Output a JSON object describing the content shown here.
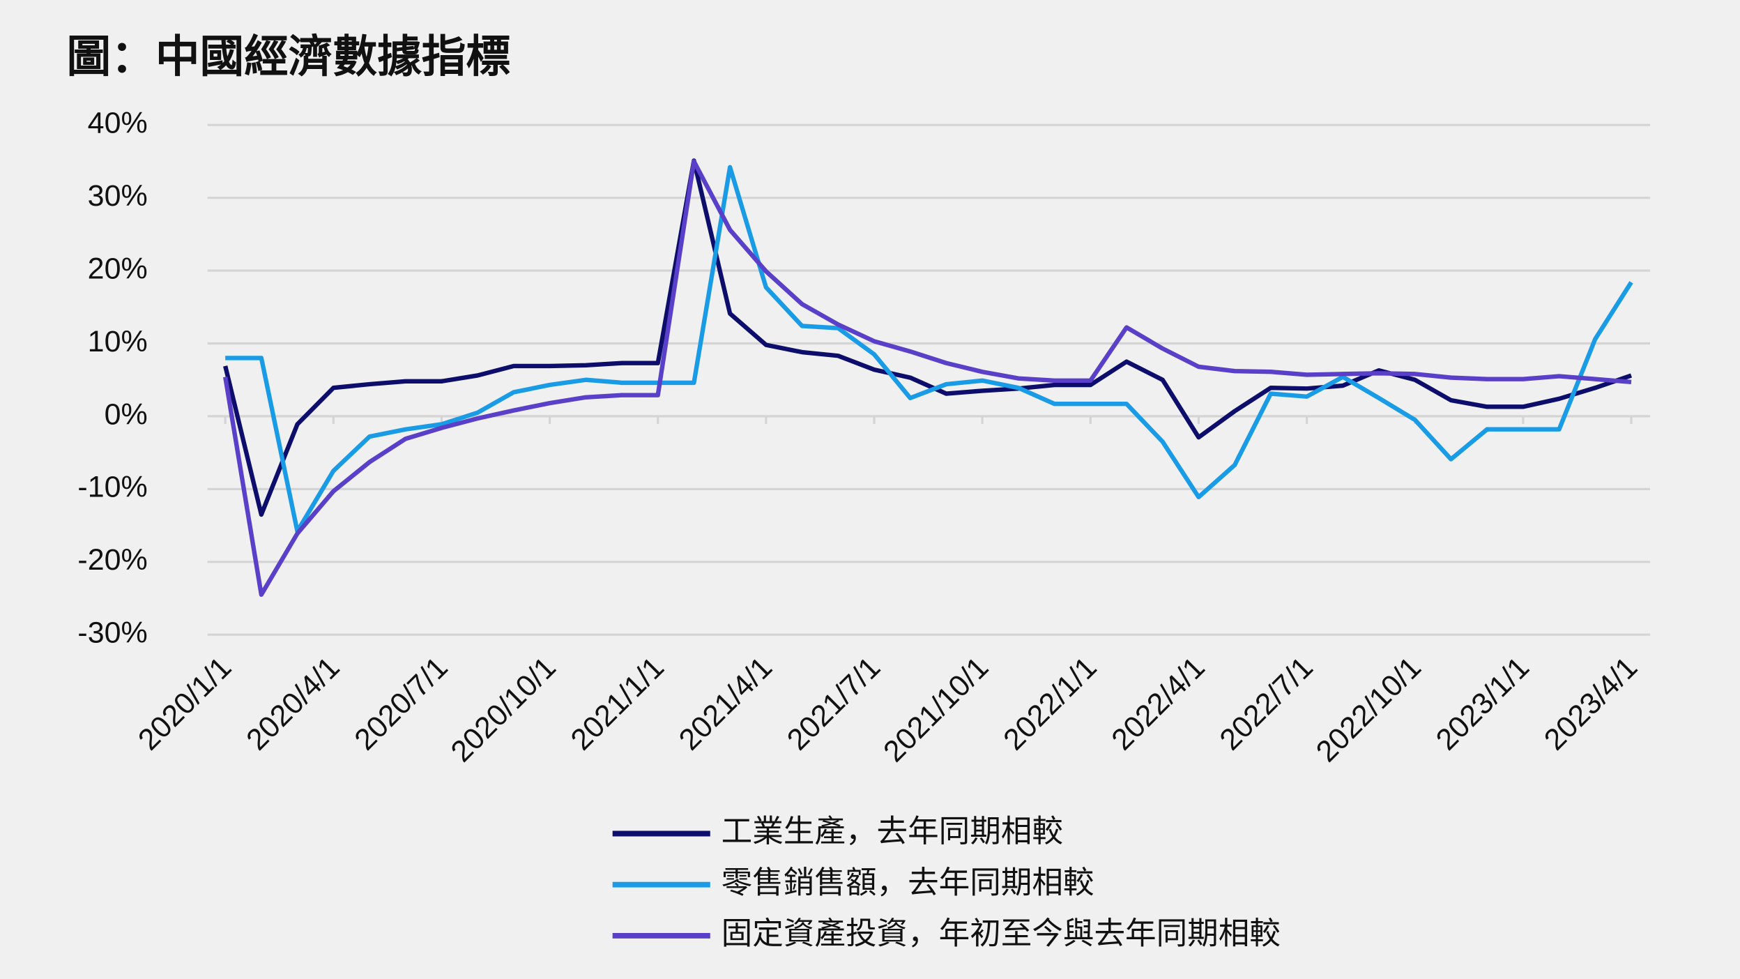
{
  "chart_data": {
    "type": "line",
    "title": "圖：中國經濟數據指標",
    "categories": [
      "2020/1/1",
      null,
      null,
      "2020/4/1",
      null,
      null,
      "2020/7/1",
      null,
      null,
      "2020/10/1",
      null,
      null,
      "2021/1/1",
      null,
      null,
      "2021/4/1",
      null,
      null,
      "2021/7/1",
      null,
      null,
      "2021/10/1",
      null,
      null,
      "2022/1/1",
      null,
      null,
      "2022/4/1",
      null,
      null,
      "2022/7/1",
      null,
      null,
      "2022/10/1",
      null,
      null,
      "2023/1/1",
      null,
      null,
      "2023/4/1"
    ],
    "series": [
      {
        "name": "工業生產，去年同期相較",
        "color": "#0d0d6b",
        "values": [
          6.9,
          -13.5,
          -1.1,
          3.9,
          4.4,
          4.8,
          4.8,
          5.6,
          6.9,
          6.9,
          7.0,
          7.3,
          7.3,
          35.1,
          14.1,
          9.8,
          8.8,
          8.3,
          6.4,
          5.3,
          3.1,
          3.5,
          3.8,
          4.3,
          4.3,
          7.5,
          5.0,
          -2.9,
          0.7,
          3.9,
          3.8,
          4.2,
          6.3,
          5.0,
          2.2,
          1.3,
          1.3,
          2.4,
          3.9,
          5.6
        ]
      },
      {
        "name": "零售銷售額，去年同期相較",
        "color": "#1a9be6",
        "values": [
          8.0,
          8.0,
          -15.8,
          -7.5,
          -2.8,
          -1.8,
          -1.1,
          0.5,
          3.3,
          4.3,
          5.0,
          4.6,
          4.6,
          4.6,
          34.2,
          17.7,
          12.4,
          12.1,
          8.5,
          2.5,
          4.4,
          4.9,
          3.9,
          1.7,
          1.7,
          1.7,
          -3.5,
          -11.1,
          -6.7,
          3.1,
          2.7,
          5.4,
          2.5,
          -0.5,
          -5.9,
          -1.8,
          -1.8,
          -1.8,
          10.6,
          18.4
        ]
      },
      {
        "name": "固定資產投資，年初至今與去年同期相較",
        "color": "#5a3fc8",
        "values": [
          5.4,
          -24.5,
          -16.1,
          -10.3,
          -6.3,
          -3.1,
          -1.6,
          -0.3,
          0.8,
          1.8,
          2.6,
          2.9,
          2.9,
          35.0,
          25.6,
          19.9,
          15.4,
          12.6,
          10.3,
          8.9,
          7.3,
          6.1,
          5.2,
          4.9,
          4.9,
          12.2,
          9.3,
          6.8,
          6.2,
          6.1,
          5.7,
          5.8,
          5.9,
          5.8,
          5.3,
          5.1,
          5.1,
          5.5,
          5.1,
          4.7
        ]
      }
    ],
    "ylim": [
      -30,
      40
    ],
    "yticks": [
      {
        "value": -30,
        "label": "-30%"
      },
      {
        "value": -20,
        "label": "-20%"
      },
      {
        "value": -10,
        "label": "-10%"
      },
      {
        "value": 0,
        "label": "0%"
      },
      {
        "value": 10,
        "label": "10%"
      },
      {
        "value": 20,
        "label": "20%"
      },
      {
        "value": 30,
        "label": "30%"
      },
      {
        "value": 40,
        "label": "40%"
      }
    ],
    "grid": true
  }
}
